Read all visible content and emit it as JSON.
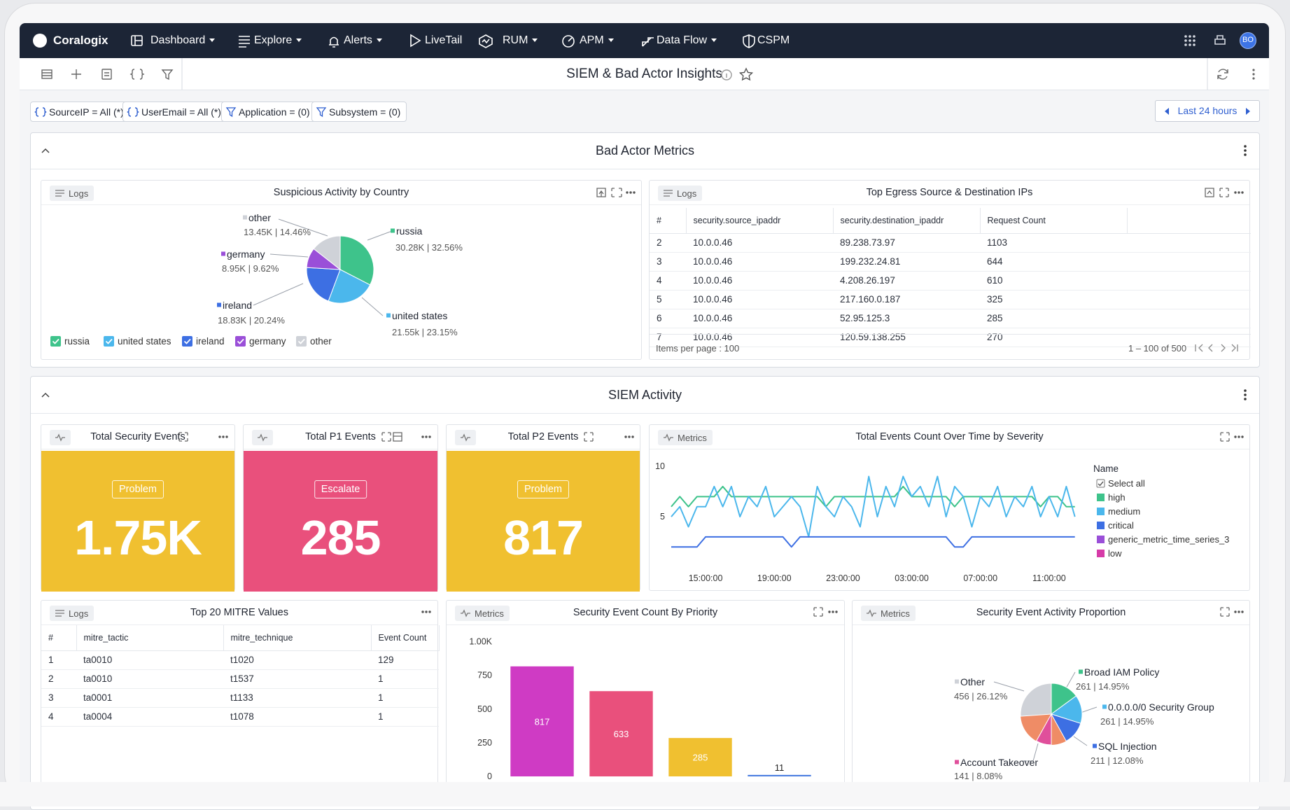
{
  "nav": {
    "brand": "Coralogix",
    "items": [
      "Dashboard",
      "Explore",
      "Alerts",
      "LiveTail",
      "RUM",
      "APM",
      "Data Flow",
      "CSPM"
    ],
    "avatar": "BO"
  },
  "dashboard_title": "SIEM & Bad Actor Insights",
  "filters": [
    "SourceIP = All (*)",
    "UserEmail = All (*)",
    "Application = (0)",
    "Subsystem = (0)"
  ],
  "time_range": "Last 24 hours",
  "sections": [
    "Bad Actor Metrics",
    "SIEM Activity"
  ],
  "country_pie": {
    "source": "Logs",
    "title": "Suspicious Activity by Country",
    "type": "pie",
    "categories": [
      "russia",
      "united states",
      "ireland",
      "germany",
      "other"
    ],
    "values": [
      32.56,
      23.15,
      20.24,
      9.62,
      14.46
    ],
    "value_labels": [
      "30.28K | 32.56%",
      "21.55k | 23.15%",
      "18.83K | 20.24%",
      "8.95K | 9.62%",
      "13.45K | 14.46%"
    ],
    "colors": [
      "#3ec38b",
      "#4bb7ec",
      "#3d6fe3",
      "#9a4fd8",
      "#cfd2d8"
    ]
  },
  "egress_table": {
    "source": "Logs",
    "title": "Top Egress Source & Destination IPs",
    "columns": [
      "#",
      "security.source_ipaddr",
      "security.destination_ipaddr",
      "Request Count"
    ],
    "rows": [
      [
        "2",
        "10.0.0.46",
        "89.238.73.97",
        "1103"
      ],
      [
        "3",
        "10.0.0.46",
        "199.232.24.81",
        "644"
      ],
      [
        "4",
        "10.0.0.46",
        "4.208.26.197",
        "610"
      ],
      [
        "5",
        "10.0.0.46",
        "217.160.0.187",
        "325"
      ],
      [
        "6",
        "10.0.0.46",
        "52.95.125.3",
        "285"
      ],
      [
        "7",
        "10.0.0.46",
        "120.59.138.255",
        "270"
      ]
    ],
    "footer_left": "Items per page : 100",
    "footer_right": "1 – 100 of 500"
  },
  "stats": [
    {
      "title": "Total Security Events",
      "badge": "Problem",
      "value": "1.75K",
      "color": "#f0c030"
    },
    {
      "title": "Total P1 Events",
      "badge": "Escalate",
      "value": "285",
      "color": "#e9507c"
    },
    {
      "title": "Total P2 Events",
      "badge": "Problem",
      "value": "817",
      "color": "#f0c030"
    }
  ],
  "severity_line": {
    "source": "Metrics",
    "title": "Total Events Count Over Time by Severity",
    "type": "line",
    "categories": [
      null,
      null,
      null,
      null,
      "15:00:00",
      null,
      null,
      null,
      null,
      null,
      null,
      null,
      "19:00:00",
      null,
      null,
      null,
      null,
      null,
      null,
      null,
      "23:00:00",
      null,
      null,
      null,
      null,
      null,
      null,
      null,
      "03:00:00",
      null,
      null,
      null,
      null,
      null,
      null,
      null,
      "07:00:00",
      null,
      null,
      null,
      null,
      null,
      null,
      null,
      "11:00:00",
      null,
      null,
      null
    ],
    "series": [
      {
        "name": "high",
        "color": "#3ec38b",
        "values": [
          6,
          7,
          6,
          7,
          7,
          7,
          8,
          7,
          7,
          7,
          7,
          7,
          7,
          7,
          7,
          7,
          7,
          7,
          6,
          7,
          7,
          7,
          7,
          7,
          7,
          7,
          7,
          8,
          7,
          7,
          7,
          7,
          7,
          6,
          7,
          7,
          7,
          7,
          7,
          7,
          7,
          7,
          7,
          6,
          7,
          7,
          6,
          6
        ]
      },
      {
        "name": "medium",
        "color": "#4bb7ec",
        "values": [
          5,
          6,
          4,
          6,
          6,
          8,
          6,
          8,
          5,
          7,
          6,
          8,
          5,
          6,
          7,
          6,
          3,
          8,
          6,
          5,
          7,
          6,
          4,
          9,
          5,
          8,
          6,
          9,
          7,
          8,
          6,
          9,
          5,
          8,
          7,
          4,
          7,
          6,
          8,
          5,
          7,
          6,
          8,
          5,
          7,
          5,
          8,
          5
        ]
      },
      {
        "name": "critical",
        "color": "#3d6fe3",
        "values": [
          2,
          2,
          2,
          2,
          3,
          3,
          3,
          3,
          3,
          3,
          3,
          3,
          3,
          3,
          2,
          3,
          3,
          3,
          3,
          3,
          3,
          3,
          3,
          3,
          3,
          3,
          3,
          3,
          3,
          3,
          3,
          3,
          3,
          2,
          2,
          3,
          3,
          3,
          3,
          3,
          3,
          3,
          3,
          3,
          3,
          3,
          3,
          3
        ]
      },
      {
        "name": "generic_metric_time_series_3",
        "color": "#9a4fd8",
        "values": [
          null,
          null,
          null,
          null,
          null,
          null,
          null,
          null,
          null,
          null,
          null,
          null,
          null,
          null,
          null,
          null,
          null,
          null,
          null,
          null,
          null,
          null,
          null,
          null,
          null,
          null,
          null,
          null,
          null,
          null,
          null,
          null,
          null,
          null,
          null,
          null,
          null,
          null,
          null,
          null,
          null,
          null,
          null,
          null,
          null,
          null,
          null,
          null
        ]
      },
      {
        "name": "low",
        "color": "#d63ba8",
        "values": [
          null,
          null,
          null,
          null,
          null,
          null,
          null,
          null,
          null,
          null,
          null,
          null,
          null,
          null,
          null,
          null,
          null,
          null,
          null,
          null,
          null,
          null,
          null,
          null,
          null,
          null,
          null,
          null,
          null,
          null,
          null,
          null,
          null,
          null,
          null,
          null,
          null,
          null,
          null,
          null,
          null,
          null,
          null,
          null,
          null,
          null,
          null,
          null
        ]
      }
    ],
    "ylim": [
      0,
      10.5
    ],
    "yticks": [
      5,
      10
    ],
    "legend_title": "Name",
    "select_all": "Select all"
  },
  "mitre_table": {
    "source": "Logs",
    "title": "Top 20 MITRE Values",
    "columns": [
      "#",
      "mitre_tactic",
      "mitre_technique",
      "Event Count"
    ],
    "rows": [
      [
        "1",
        "ta0010",
        "t1020",
        "129"
      ],
      [
        "2",
        "ta0010",
        "t1537",
        "1"
      ],
      [
        "3",
        "ta0001",
        "t1133",
        "1"
      ],
      [
        "4",
        "ta0004",
        "t1078",
        "1"
      ]
    ]
  },
  "priority_bar": {
    "source": "Metrics",
    "title": "Security Event Count By Priority",
    "type": "bar",
    "values": [
      817,
      633,
      285,
      11
    ],
    "colors": [
      "#cf3bc4",
      "#e9507c",
      "#f0c030",
      "#4a7de0"
    ],
    "ylim": [
      0,
      1050
    ],
    "yticks": [
      0,
      250,
      500,
      750,
      {
        "value": 1000,
        "label": "1.00K"
      }
    ]
  },
  "proportion_pie": {
    "source": "Metrics",
    "title": "Security Event Activity Proportion",
    "type": "pie",
    "categories": [
      "Broad IAM Policy",
      "0.0.0.0/0 Security Group",
      "SQL Injection",
      "Account Takeover",
      "Other"
    ],
    "values": [
      14.95,
      14.95,
      12.08,
      8.08,
      26.12
    ],
    "value_labels": [
      "261 | 14.95%",
      "261 | 14.95%",
      "211 | 12.08%",
      "141 | 8.08%",
      "456 | 26.12%"
    ],
    "colors": [
      "#3ec38b",
      "#4bb7ec",
      "#3d6fe3",
      "#e04f9b",
      "#cfd2d8"
    ]
  }
}
